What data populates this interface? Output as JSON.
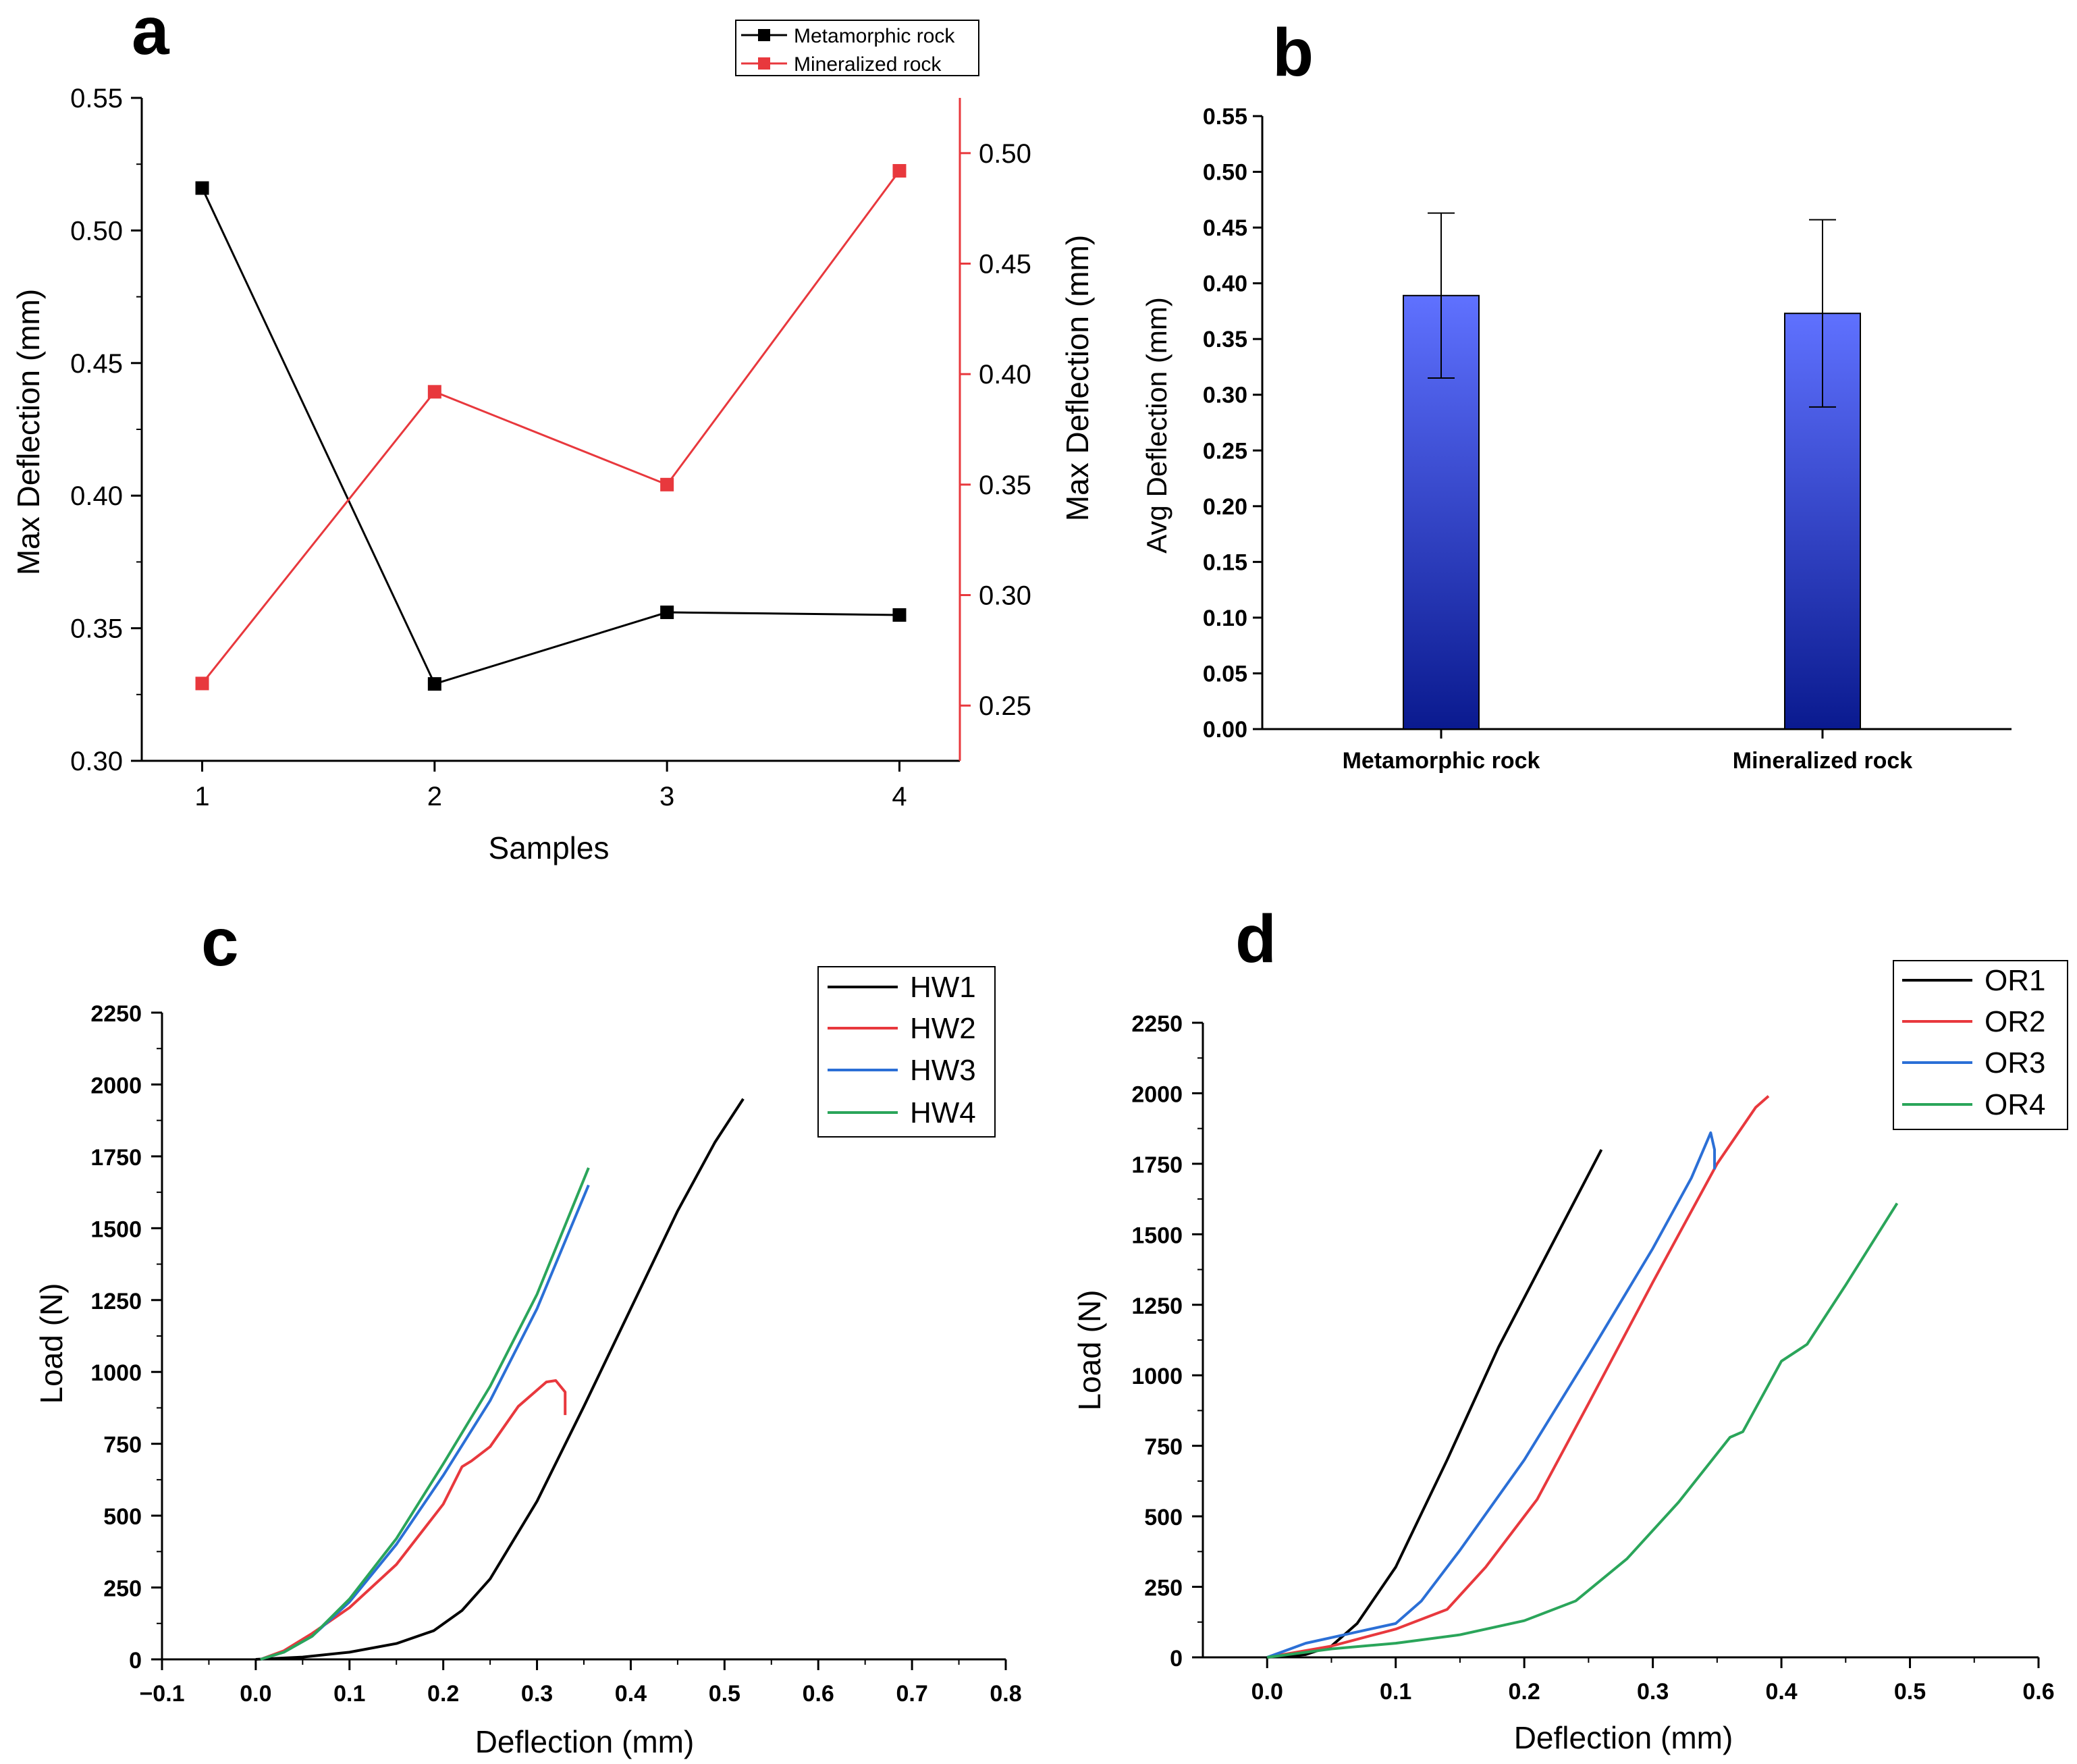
{
  "chart_data": [
    {
      "panel": "a",
      "type": "line",
      "xlabel": "Samples",
      "ylabel": "Max Deflection (mm)",
      "ylabel_right": "Max Deflection (mm)",
      "categories": [
        1,
        2,
        3,
        4
      ],
      "xticks": [
        "1",
        "2",
        "3",
        "4"
      ],
      "ylim": [
        0.3,
        0.55
      ],
      "yticks": [
        "0.30",
        "0.35",
        "0.40",
        "0.45",
        "0.50",
        "0.55"
      ],
      "ylim_right": [
        0.225,
        0.525
      ],
      "yticks_right": [
        "0.25",
        "0.30",
        "0.35",
        "0.40",
        "0.45",
        "0.50"
      ],
      "legend_position": "top-right",
      "series": [
        {
          "name": "Metamorphic rock",
          "axis": "left",
          "color": "#000000",
          "values": [
            0.516,
            0.329,
            0.356,
            0.355
          ]
        },
        {
          "name": "Mineralized rock",
          "axis": "right",
          "color": "#e8383d",
          "values": [
            0.26,
            0.392,
            0.35,
            0.492
          ]
        }
      ]
    },
    {
      "panel": "b",
      "type": "bar",
      "ylabel": "Avg Deflection (mm)",
      "categories": [
        "Metamorphic rock",
        "Mineralized rock"
      ],
      "values": [
        0.389,
        0.373
      ],
      "errors": [
        0.074,
        0.084
      ],
      "ylim": [
        0.0,
        0.55
      ],
      "yticks": [
        "0.00",
        "0.05",
        "0.10",
        "0.15",
        "0.20",
        "0.25",
        "0.30",
        "0.35",
        "0.40",
        "0.45",
        "0.50",
        "0.55"
      ],
      "bar_color_top": "#5f71ff",
      "bar_color_bottom": "#0a1a8f"
    },
    {
      "panel": "c",
      "type": "line",
      "xlabel": "Deflection (mm)",
      "ylabel": "Load (N)",
      "xlim": [
        -0.1,
        0.8
      ],
      "ylim": [
        0,
        2250
      ],
      "xticks": [
        "−0.1",
        "0.0",
        "0.1",
        "0.2",
        "0.3",
        "0.4",
        "0.5",
        "0.6",
        "0.7",
        "0.8"
      ],
      "yticks": [
        "0",
        "250",
        "500",
        "750",
        "1000",
        "1250",
        "1500",
        "1750",
        "2000",
        "2250"
      ],
      "legend_position": "top-right",
      "series": [
        {
          "name": "HW1",
          "color": "#000000",
          "points": [
            [
              0.0,
              0
            ],
            [
              0.05,
              8
            ],
            [
              0.1,
              25
            ],
            [
              0.15,
              55
            ],
            [
              0.19,
              100
            ],
            [
              0.22,
              170
            ],
            [
              0.25,
              280
            ],
            [
              0.3,
              550
            ],
            [
              0.35,
              880
            ],
            [
              0.4,
              1220
            ],
            [
              0.45,
              1560
            ],
            [
              0.49,
              1800
            ],
            [
              0.52,
              1950
            ]
          ]
        },
        {
          "name": "HW2",
          "color": "#e8383d",
          "points": [
            [
              0.005,
              0
            ],
            [
              0.03,
              30
            ],
            [
              0.06,
              90
            ],
            [
              0.1,
              180
            ],
            [
              0.15,
              330
            ],
            [
              0.2,
              540
            ],
            [
              0.22,
              670
            ],
            [
              0.23,
              690
            ],
            [
              0.25,
              740
            ],
            [
              0.28,
              880
            ],
            [
              0.31,
              965
            ],
            [
              0.32,
              970
            ],
            [
              0.33,
              930
            ],
            [
              0.33,
              850
            ]
          ]
        },
        {
          "name": "HW3",
          "color": "#2b6fd6",
          "points": [
            [
              0.005,
              0
            ],
            [
              0.03,
              25
            ],
            [
              0.06,
              80
            ],
            [
              0.1,
              200
            ],
            [
              0.15,
              400
            ],
            [
              0.2,
              640
            ],
            [
              0.25,
              900
            ],
            [
              0.3,
              1220
            ],
            [
              0.355,
              1650
            ]
          ]
        },
        {
          "name": "HW4",
          "color": "#2aa55a",
          "points": [
            [
              0.005,
              0
            ],
            [
              0.03,
              25
            ],
            [
              0.06,
              80
            ],
            [
              0.1,
              210
            ],
            [
              0.15,
              420
            ],
            [
              0.2,
              680
            ],
            [
              0.25,
              950
            ],
            [
              0.3,
              1270
            ],
            [
              0.355,
              1710
            ]
          ]
        }
      ]
    },
    {
      "panel": "d",
      "type": "line",
      "xlabel": "Deflection (mm)",
      "ylabel": "Load (N)",
      "xlim": [
        -0.05,
        0.6
      ],
      "ylim": [
        0,
        2250
      ],
      "xticks": [
        "0.0",
        "0.1",
        "0.2",
        "0.3",
        "0.4",
        "0.5",
        "0.6"
      ],
      "yticks": [
        "0",
        "250",
        "500",
        "750",
        "1000",
        "1250",
        "1500",
        "1750",
        "2000",
        "2250"
      ],
      "legend_position": "top-right",
      "series": [
        {
          "name": "OR1",
          "color": "#000000",
          "points": [
            [
              0.0,
              0
            ],
            [
              0.03,
              10
            ],
            [
              0.05,
              40
            ],
            [
              0.07,
              120
            ],
            [
              0.1,
              320
            ],
            [
              0.14,
              700
            ],
            [
              0.18,
              1100
            ],
            [
              0.22,
              1450
            ],
            [
              0.26,
              1800
            ]
          ]
        },
        {
          "name": "OR2",
          "color": "#e8383d",
          "points": [
            [
              0.0,
              0
            ],
            [
              0.05,
              40
            ],
            [
              0.1,
              100
            ],
            [
              0.14,
              170
            ],
            [
              0.17,
              320
            ],
            [
              0.2,
              500
            ],
            [
              0.21,
              560
            ],
            [
              0.25,
              900
            ],
            [
              0.3,
              1330
            ],
            [
              0.35,
              1750
            ],
            [
              0.38,
              1950
            ],
            [
              0.39,
              1990
            ]
          ]
        },
        {
          "name": "OR3",
          "color": "#2b6fd6",
          "points": [
            [
              0.0,
              0
            ],
            [
              0.03,
              50
            ],
            [
              0.06,
              80
            ],
            [
              0.1,
              120
            ],
            [
              0.12,
              200
            ],
            [
              0.15,
              380
            ],
            [
              0.2,
              700
            ],
            [
              0.25,
              1070
            ],
            [
              0.3,
              1450
            ],
            [
              0.33,
              1700
            ],
            [
              0.345,
              1860
            ],
            [
              0.348,
              1800
            ],
            [
              0.348,
              1730
            ]
          ]
        },
        {
          "name": "OR4",
          "color": "#2aa55a",
          "points": [
            [
              0.0,
              0
            ],
            [
              0.05,
              30
            ],
            [
              0.1,
              50
            ],
            [
              0.15,
              80
            ],
            [
              0.2,
              130
            ],
            [
              0.24,
              200
            ],
            [
              0.28,
              350
            ],
            [
              0.32,
              550
            ],
            [
              0.36,
              780
            ],
            [
              0.37,
              800
            ],
            [
              0.4,
              1050
            ],
            [
              0.42,
              1110
            ],
            [
              0.45,
              1320
            ],
            [
              0.49,
              1610
            ]
          ]
        }
      ]
    }
  ],
  "panel_labels": [
    "a",
    "b",
    "c",
    "d"
  ]
}
